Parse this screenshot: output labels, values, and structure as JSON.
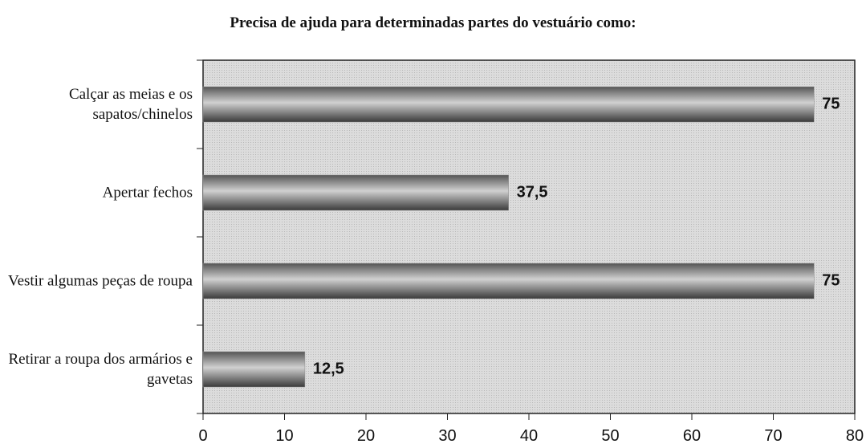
{
  "chart_data": {
    "type": "hbar",
    "title": "Precisa de ajuda para determinadas partes do vestuário como:",
    "categories": [
      "Calçar as meias e os sapatos/chinelos",
      "Apertar fechos",
      "Vestir algumas peças de roupa",
      "Retirar a roupa dos armários e gavetas"
    ],
    "values": [
      75,
      37.5,
      75,
      12.5
    ],
    "value_labels": [
      "75",
      "37,5",
      "75",
      "12,5"
    ],
    "color": "#8c8c8c",
    "xlim": [
      0,
      80
    ],
    "xticks": [
      0,
      10,
      20,
      30,
      40,
      50,
      60,
      70,
      80
    ]
  }
}
